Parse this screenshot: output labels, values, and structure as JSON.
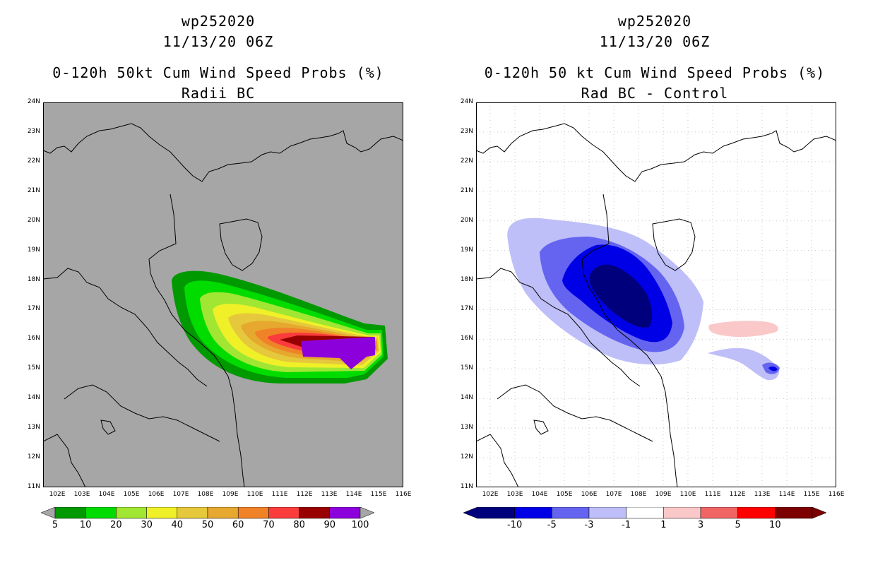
{
  "left_panel": {
    "storm_id": "wp252020",
    "datetime": "11/13/20 06Z",
    "title": "0-120h 50kt Cum Wind Speed Probs (%)",
    "subtitle": "Radii BC",
    "background_color": "#a6a6a6",
    "colorbar": {
      "labels": [
        "5",
        "10",
        "20",
        "30",
        "40",
        "50",
        "60",
        "70",
        "80",
        "90",
        "100"
      ],
      "colors": [
        "#009900",
        "#00dc00",
        "#a0e632",
        "#f0f028",
        "#e6c83c",
        "#e6a82e",
        "#f08228",
        "#fa3c3c",
        "#990000",
        "#8c00dc"
      ]
    }
  },
  "right_panel": {
    "storm_id": "wp252020",
    "datetime": "11/13/20 06Z",
    "title": "0-120h 50 kt Cum Wind Speed Probs (%)",
    "subtitle": "Rad BC - Control",
    "background_color": "#ffffff",
    "colorbar": {
      "labels": [
        "-10",
        "-5",
        "-3",
        "-1",
        "1",
        "3",
        "5",
        "10"
      ],
      "colors": [
        "#00007d",
        "#0000e6",
        "#6464f0",
        "#bebef8",
        "#ffffff",
        "#fac8c8",
        "#f06464",
        "#ff0000",
        "#7d0000"
      ]
    }
  },
  "axes": {
    "lat_labels": [
      "24N",
      "23N",
      "22N",
      "21N",
      "20N",
      "19N",
      "18N",
      "17N",
      "16N",
      "15N",
      "14N",
      "13N",
      "12N",
      "11N"
    ],
    "lon_labels": [
      "102E",
      "103E",
      "104E",
      "105E",
      "106E",
      "107E",
      "108E",
      "109E",
      "110E",
      "111E",
      "112E",
      "113E",
      "114E",
      "115E",
      "116E"
    ]
  }
}
